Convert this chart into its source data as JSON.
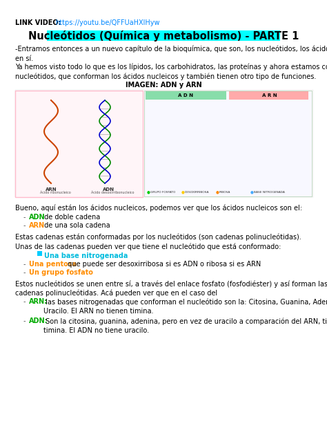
{
  "bg_color": "#ffffff",
  "link_label": "LINK VIDEO:  ",
  "link_url": "https://youtu.be/QFFUaHXlHyw",
  "title": "Nucleótidos (Química y metabolismo) - PARTE 1",
  "title_bg": "#00ffff",
  "title_color": "#000000",
  "para1": "-Entramos entonces a un nuevo capítulo de la bioquímica, que son, los nucleótidos, los ácidos nucleicos\nen sí.",
  "para2": "Ya hemos visto todo lo que es los lípidos, los carbohidratos, las proteínas y ahora estamos con los\nnucleótidos, que conforman los ácidos nucleicos y también tienen otro tipo de funciones.",
  "img_label": "IMAGEN: ADN y ARN",
  "para3": "Bueno, aquí están los ácidos nucleicos, podemos ver que los ácidos nucleicos son el:",
  "bullet1_prefix": "ADN",
  "bullet1_prefix_color": "#00aa00",
  "bullet1_text": " de doble cadena",
  "bullet2_prefix": "ARN",
  "bullet2_prefix_color": "#ff8c00",
  "bullet2_text": " de una sola cadena",
  "para4": "Estas cadenas están conformadas por los nucleótidos (son cadenas polinucleótidas).",
  "para5": "Unas de las cadenas pueden ver que tiene el nucleótido que está conformado:",
  "nuc1_color": "#00bbdd",
  "nuc1_text": "Una base nitrogenada",
  "nuc1_sq_color": "#00ccff",
  "nuc2_prefix": "Una pentosa",
  "nuc2_prefix_color": "#ff8c00",
  "nuc2_text": " que puede ser desoxirribosa si es ADN o ribosa si es ARN",
  "nuc3_prefix": "Un grupo fosfato",
  "nuc3_prefix_color": "#ff8c00",
  "para6": "Estos nucleótidos se unen entre sí, a través del enlace fosfato (fosfodiéster) y así forman las grandes\ncadenas polinucleótidas. Acá pueden ver que en el caso del",
  "arn_label": "ARN:",
  "arn_color": "#00aa00",
  "arn_text": " las bases nitrogenadas que conforman el nucleótido son la: Citosina, Guanina, Adenina y el\nUracilo. El ARN no tienen timina.",
  "adn_label": "ADN:",
  "adn_color": "#00aa00",
  "adn_text": " Son la citosina, guanina, adenina, pero en vez de uracilo a comparación del ARN, tiene\ntimina. El ADN no tiene uracilo.",
  "fs": 7.0,
  "fs_title": 10.5,
  "fs_link": 7.0
}
